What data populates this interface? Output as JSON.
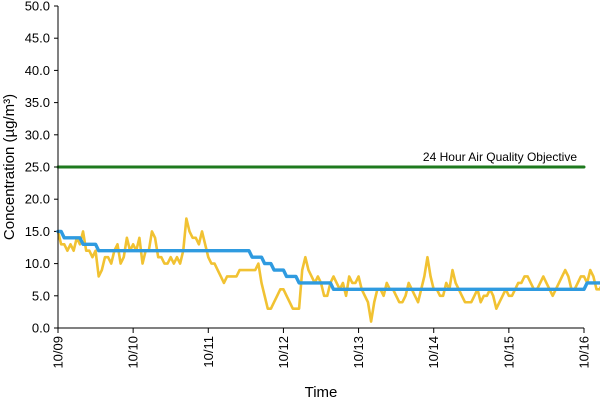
{
  "chart_data": {
    "type": "line",
    "title": "",
    "xlabel": "Time",
    "ylabel": "Concentration (µg/m³)",
    "ylim": [
      0,
      50
    ],
    "yticks": [
      "0.0",
      "5.0",
      "10.0",
      "15.0",
      "20.0",
      "25.0",
      "30.0",
      "35.0",
      "40.0",
      "45.0",
      "50.0"
    ],
    "xlim": [
      "10/09",
      "10/16"
    ],
    "xticks": [
      "10/09",
      "10/10",
      "10/11",
      "10/12",
      "10/13",
      "10/14",
      "10/15",
      "10/16"
    ],
    "grid": false,
    "colors": {
      "hourly": "#f1c232",
      "daily": "#2f9be0",
      "objective": "#1e7a1e"
    },
    "annotations": [
      {
        "text": "24 Hour Air Quality Objective",
        "x": "10/15.9",
        "y": 25
      }
    ],
    "series": [
      {
        "name": "",
        "style": "hourly",
        "x_start": "10/09",
        "x_step_hours": 1,
        "values": [
          15,
          13,
          13,
          12,
          13,
          12,
          14,
          13,
          15,
          12,
          12,
          11,
          12,
          8,
          9,
          11,
          11,
          10,
          12,
          13,
          10,
          11,
          14,
          12,
          13,
          12,
          14,
          10,
          12,
          12,
          15,
          14,
          11,
          11,
          10,
          10,
          11,
          10,
          11,
          10,
          12,
          17,
          15,
          14,
          14,
          13,
          15,
          13,
          11,
          10,
          10,
          9,
          8,
          7,
          8,
          8,
          8,
          8,
          9,
          9,
          9,
          9,
          9,
          9,
          10,
          7,
          5,
          3,
          3,
          4,
          5,
          6,
          6,
          5,
          4,
          3,
          3,
          3,
          9,
          11,
          9,
          8,
          7,
          8,
          7,
          5,
          5,
          7,
          8,
          7,
          6,
          7,
          5,
          8,
          7,
          7,
          8,
          6,
          5,
          4,
          1,
          4,
          6,
          6,
          5,
          7,
          6,
          6,
          5,
          4,
          4,
          5,
          7,
          6,
          5,
          4,
          6,
          8,
          11,
          8,
          6,
          6,
          5,
          5,
          7,
          6,
          9,
          7,
          6,
          5,
          4,
          4,
          4,
          5,
          6,
          4,
          5,
          5,
          6,
          5,
          3,
          4,
          5,
          6,
          5,
          5,
          6,
          7,
          7,
          8,
          8,
          7,
          6,
          6,
          7,
          8,
          7,
          6,
          5,
          6,
          7,
          8,
          9,
          8,
          6,
          6,
          7,
          8,
          8,
          7,
          9,
          8,
          6,
          6,
          7,
          8,
          9,
          8,
          8,
          9,
          8,
          9,
          10,
          9,
          11,
          12,
          12,
          11,
          12,
          13,
          10,
          8,
          11,
          13,
          12,
          10,
          8,
          7,
          6,
          5,
          8,
          9,
          10,
          9,
          11,
          12,
          12,
          13,
          11,
          12,
          13,
          12,
          11,
          10,
          13,
          12,
          10,
          9,
          8,
          9,
          8,
          11,
          10,
          9,
          8,
          9,
          10,
          9,
          8,
          7,
          8,
          8,
          8,
          8,
          8
        ]
      },
      {
        "name": "",
        "style": "daily",
        "x_start": "10/09",
        "x_step_hours": 1,
        "values": [
          15,
          15,
          14,
          14,
          14,
          14,
          14,
          14,
          13,
          13,
          13,
          13,
          13,
          12,
          12,
          12,
          12,
          12,
          12,
          12,
          12,
          12,
          12,
          12,
          12,
          12,
          12,
          12,
          12,
          12,
          12,
          12,
          12,
          12,
          12,
          12,
          12,
          12,
          12,
          12,
          12,
          12,
          12,
          12,
          12,
          12,
          12,
          12,
          12,
          12,
          12,
          12,
          12,
          12,
          12,
          12,
          12,
          12,
          12,
          12,
          12,
          12,
          11,
          11,
          11,
          11,
          10,
          10,
          10,
          9,
          9,
          9,
          9,
          8,
          8,
          8,
          8,
          7,
          7,
          7,
          7,
          7,
          7,
          7,
          7,
          7,
          7,
          7,
          6,
          6,
          6,
          6,
          6,
          6,
          6,
          6,
          6,
          6,
          6,
          6,
          6,
          6,
          6,
          6,
          6,
          6,
          6,
          6,
          6,
          6,
          6,
          6,
          6,
          6,
          6,
          6,
          6,
          6,
          6,
          6,
          6,
          6,
          6,
          6,
          6,
          6,
          6,
          6,
          6,
          6,
          6,
          6,
          6,
          6,
          6,
          6,
          6,
          6,
          6,
          6,
          6,
          6,
          6,
          6,
          6,
          6,
          6,
          6,
          6,
          6,
          6,
          6,
          6,
          6,
          6,
          6,
          6,
          6,
          6,
          6,
          6,
          6,
          6,
          6,
          6,
          6,
          6,
          6,
          6,
          7,
          7,
          7,
          7,
          7,
          7,
          7,
          8,
          8,
          8,
          8,
          8,
          8,
          8,
          8,
          9,
          9,
          9,
          9,
          9,
          9,
          9,
          9,
          9,
          9,
          9,
          9,
          9,
          9,
          9,
          9,
          9,
          9,
          9,
          10,
          10,
          10,
          10,
          10,
          10,
          10,
          10,
          10,
          10,
          10,
          10,
          10,
          10,
          10,
          10,
          10,
          10,
          10,
          10,
          10,
          10,
          10,
          10,
          10,
          10,
          10,
          10,
          10,
          10,
          10
        ]
      },
      {
        "name": "",
        "style": "objective",
        "x": [
          "10/09",
          "10/16"
        ],
        "values": [
          25,
          25
        ]
      }
    ]
  }
}
